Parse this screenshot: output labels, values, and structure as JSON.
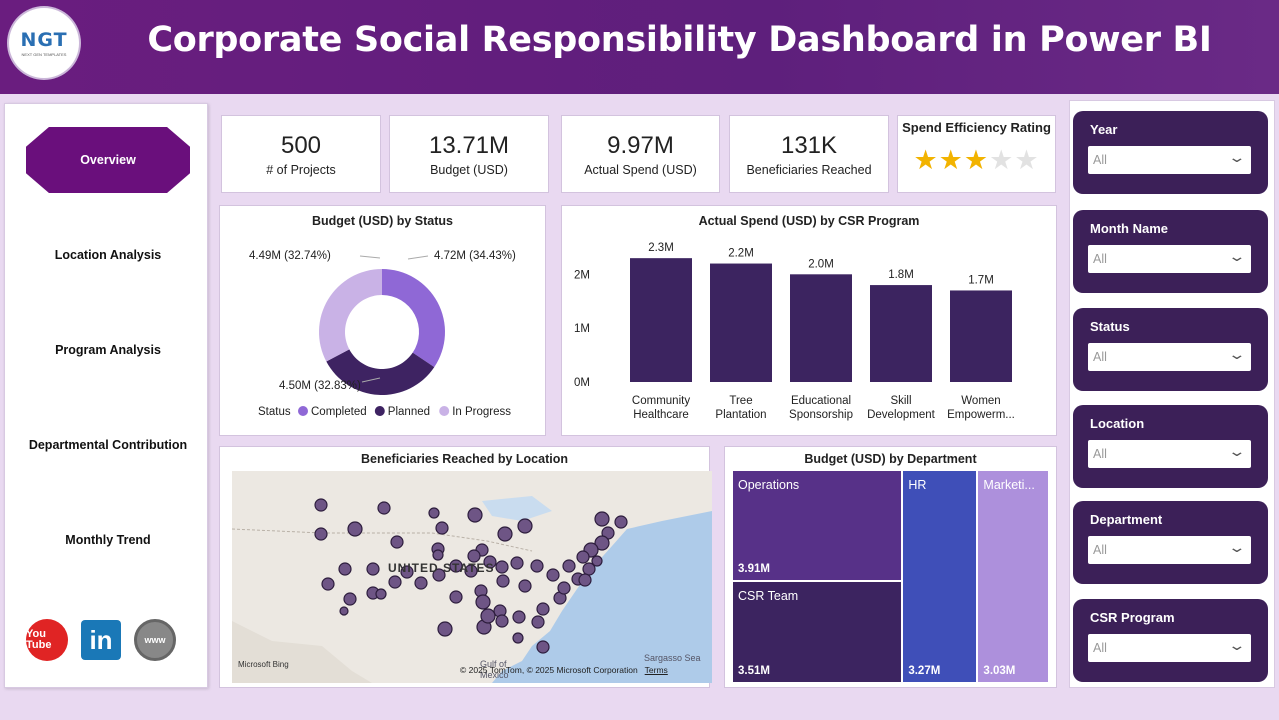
{
  "header": {
    "title": "Corporate Social Responsibility Dashboard in Power BI",
    "logo_text": "NGT",
    "logo_sub": "NEXT GEN TEMPLATES"
  },
  "nav": {
    "items": [
      {
        "label": "Overview"
      },
      {
        "label": "Location Analysis"
      },
      {
        "label": "Program Analysis"
      },
      {
        "label": "Departmental Contribution"
      },
      {
        "label": "Monthly Trend"
      }
    ]
  },
  "social": {
    "youtube": "You Tube",
    "linkedin": "in",
    "web": "www"
  },
  "kpis": [
    {
      "value": "500",
      "label": "# of Projects"
    },
    {
      "value": "13.71M",
      "label": "Budget (USD)"
    },
    {
      "value": "9.97M",
      "label": "Actual Spend (USD)"
    },
    {
      "value": "131K",
      "label": "Beneficiaries Reached"
    }
  ],
  "rating": {
    "title": "Spend Efficiency Rating",
    "stars": 3,
    "max": 5
  },
  "chart_data": [
    {
      "type": "pie",
      "title": "Budget (USD) by Status",
      "legend_title": "Status",
      "categories": [
        "Completed",
        "Planned",
        "In Progress"
      ],
      "values": [
        4.72,
        4.5,
        4.49
      ],
      "labels": [
        "4.72M (34.43%)",
        "4.50M (32.83%)",
        "4.49M (32.74%)"
      ],
      "colors": [
        "#8f68d6",
        "#3e2362",
        "#c9b2e6"
      ]
    },
    {
      "type": "bar",
      "title": "Actual Spend (USD) by CSR Program",
      "categories": [
        "Community Healthcare",
        "Tree Plantation",
        "Educational Sponsorship",
        "Skill Development",
        "Women Empowerm..."
      ],
      "values": [
        2.3,
        2.2,
        2.0,
        1.8,
        1.7
      ],
      "value_labels": [
        "2.3M",
        "2.2M",
        "2.0M",
        "1.8M",
        "1.7M"
      ],
      "y_ticks": [
        "0M",
        "1M",
        "2M"
      ],
      "ylim": [
        0,
        2.6
      ],
      "color": "#3c2460"
    },
    {
      "type": "table",
      "title": "Budget (USD) by Department",
      "categories": [
        "Operations",
        "CSR Team",
        "HR",
        "Marketi..."
      ],
      "values": [
        3.91,
        3.51,
        3.27,
        3.03
      ],
      "value_labels": [
        "3.91M",
        "3.51M",
        "3.27M",
        "3.03M"
      ],
      "colors": [
        "#573188",
        "#3c2460",
        "#3f4fb8",
        "#ad90dc"
      ]
    }
  ],
  "map": {
    "title": "Beneficiaries Reached by Location",
    "country_label": "UNITED STATES",
    "sea_label": "Sargasso Sea",
    "gulf_label": "Gulf of Mexico",
    "bing": "Microsoft Bing",
    "copyright": "© 2025 TomTom, © 2025 Microsoft Corporation",
    "terms": "Terms"
  },
  "slicers": [
    {
      "label": "Year",
      "value": "All"
    },
    {
      "label": "Month Name",
      "value": "All"
    },
    {
      "label": "Status",
      "value": "All"
    },
    {
      "label": "Location",
      "value": "All"
    },
    {
      "label": "Department",
      "value": "All"
    },
    {
      "label": "CSR Program",
      "value": "All"
    }
  ]
}
